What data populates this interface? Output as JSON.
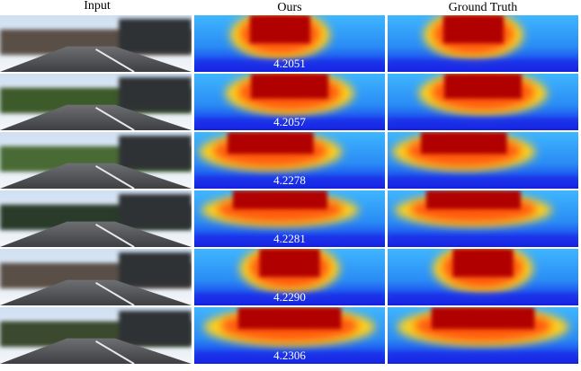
{
  "header": {
    "columns": [
      "Input",
      "Ours",
      "Ground Truth"
    ]
  },
  "rows": [
    {
      "score": "4.2051"
    },
    {
      "score": "4.2057"
    },
    {
      "score": "4.2278"
    },
    {
      "score": "4.2281"
    },
    {
      "score": "4.2290"
    },
    {
      "score": "4.2306"
    }
  ]
}
